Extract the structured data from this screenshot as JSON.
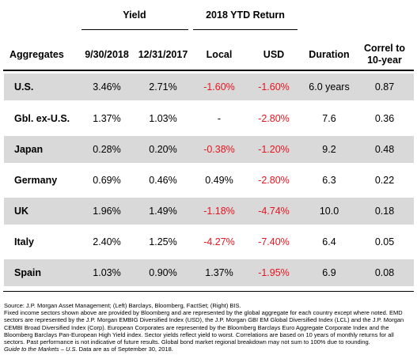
{
  "header": {
    "group_yield": "Yield",
    "group_return": "2018 YTD Return",
    "col_aggregates": "Aggregates",
    "col_date1": "9/30/2018",
    "col_date2": "12/31/2017",
    "col_local": "Local",
    "col_usd": "USD",
    "col_duration": "Duration",
    "col_correl_line1": "Correl to",
    "col_correl_line2": "10-year"
  },
  "rows": [
    {
      "name": "U.S.",
      "y1": "3.46%",
      "y2": "2.71%",
      "local": "-1.60%",
      "usd": "-1.60%",
      "duration": "6.0 years",
      "correl": "0.87"
    },
    {
      "name": "Gbl. ex-U.S.",
      "y1": "1.37%",
      "y2": "1.03%",
      "local": "-",
      "usd": "-2.80%",
      "duration": "7.6",
      "correl": "0.36"
    },
    {
      "name": "Japan",
      "y1": "0.28%",
      "y2": "0.20%",
      "local": "-0.38%",
      "usd": "-1.20%",
      "duration": "9.2",
      "correl": "0.48"
    },
    {
      "name": "Germany",
      "y1": "0.69%",
      "y2": "0.46%",
      "local": "0.49%",
      "usd": "-2.80%",
      "duration": "6.3",
      "correl": "0.22"
    },
    {
      "name": "UK",
      "y1": "1.96%",
      "y2": "1.49%",
      "local": "-1.18%",
      "usd": "-4.74%",
      "duration": "10.0",
      "correl": "0.18"
    },
    {
      "name": "Italy",
      "y1": "2.40%",
      "y2": "1.25%",
      "local": "-4.27%",
      "usd": "-7.40%",
      "duration": "6.4",
      "correl": "0.05"
    },
    {
      "name": "Spain",
      "y1": "1.03%",
      "y2": "0.90%",
      "local": "1.37%",
      "usd": "-1.95%",
      "duration": "6.9",
      "correl": "0.08"
    }
  ],
  "colors": {
    "negative": "#e8141e",
    "shade": "#d9d9d9"
  },
  "notes": {
    "source": "Source: J.P. Morgan Asset Management; (Left) Barclays, Bloomberg, FactSet; (Right) BIS.",
    "body": "Fixed income sectors shown above are provided by Bloomberg and are represented by the global aggregate for each country except where noted. EMD sectors are represented by the J.P. Morgan EMBIG Diversified Index (USD), the J.P. Morgan GBI EM Global Diversified Index (LCL) and the J.P. Morgan CEMBI Broad Diversified Index (Corp). European Corporates are represented by the Bloomberg Barclays Euro Aggregate Corporate Index and the Bloomberg Barclays Pan-European High Yield index. Sector yields reflect yield to worst. Correlations are based on 10 years of monthly returns for all sectors. Past performance is not indicative of future results. Global bond market regional breakdown may not sum to 100% due to rounding.",
    "guide_italic": "Guide to the Markets – U.S.",
    "guide_rest": " Data are as of September 30, 2018."
  }
}
